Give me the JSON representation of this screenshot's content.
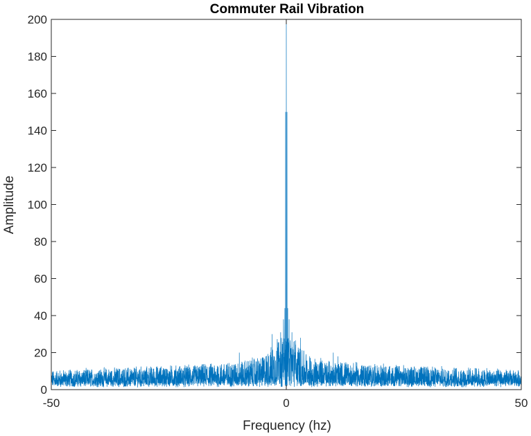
{
  "chart_data": {
    "type": "line",
    "title": "Commuter Rail Vibration",
    "xlabel": "Frequency (hz)",
    "ylabel": "Amplitude",
    "xlim": [
      -50,
      50
    ],
    "ylim": [
      0,
      200
    ],
    "xticks": [
      -50,
      0,
      50
    ],
    "yticks": [
      0,
      20,
      40,
      60,
      80,
      100,
      120,
      140,
      160,
      180,
      200
    ],
    "grid": false,
    "series": [
      {
        "color": "#0072BD",
        "noise_envelope": {
          "x": [
            -50,
            -40,
            -30,
            -20,
            -10,
            -5,
            -2,
            -1,
            0,
            1,
            2,
            5,
            10,
            20,
            30,
            40,
            50
          ],
          "typical_max": [
            12,
            13,
            14,
            15,
            17,
            20,
            28,
            40,
            200,
            40,
            28,
            20,
            17,
            15,
            14,
            13,
            12
          ]
        },
        "peaks": [
          {
            "x": 0.0,
            "y": 200
          },
          {
            "x": -0.15,
            "y": 150
          },
          {
            "x": 0.15,
            "y": 150
          },
          {
            "x": -0.3,
            "y": 44
          },
          {
            "x": 0.3,
            "y": 44
          },
          {
            "x": -0.6,
            "y": 38
          },
          {
            "x": 0.6,
            "y": 38
          },
          {
            "x": -1.2,
            "y": 31
          },
          {
            "x": 1.2,
            "y": 31
          },
          {
            "x": -3.0,
            "y": 30
          },
          {
            "x": 3.0,
            "y": 28
          },
          {
            "x": -10.0,
            "y": 20
          },
          {
            "x": 10.0,
            "y": 20
          },
          {
            "x": 11.0,
            "y": 18
          }
        ]
      }
    ]
  }
}
